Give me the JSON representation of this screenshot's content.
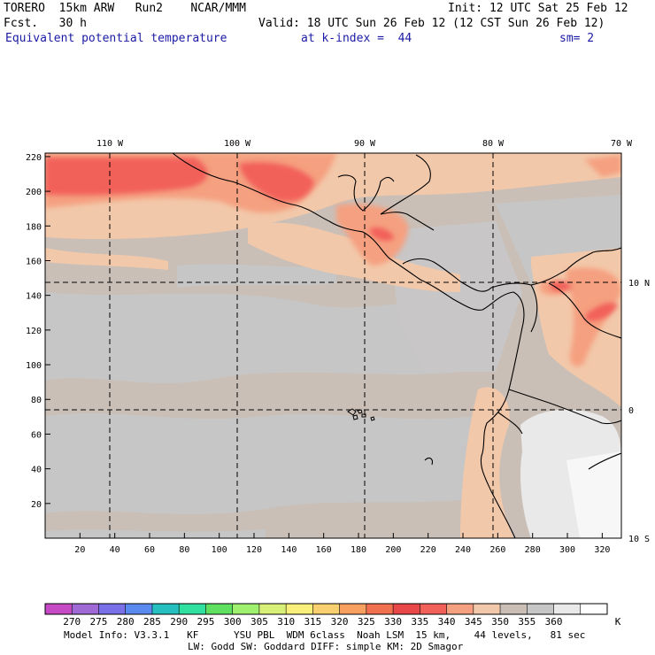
{
  "header": {
    "model": "TORERO  15km ARW   Run2    NCAR/MMM",
    "init": "Init: 12 UTC Sat 25 Feb 12",
    "fcst": "Fcst.   30 h",
    "valid": "Valid: 18 UTC Sun 26 Feb 12 (12 CST Sun 26 Feb 12)",
    "field": "Equivalent potential temperature",
    "level": "at k-index =  44",
    "smooth": "sm= 2"
  },
  "map": {
    "top_lon_labels": [
      "110 W",
      "100 W",
      "90 W",
      "80 W",
      "70 W"
    ],
    "right_lat_labels": [
      "10 N",
      "0",
      "10 S"
    ],
    "x_ticks": [
      "20",
      "40",
      "60",
      "80",
      "100",
      "120",
      "140",
      "160",
      "180",
      "200",
      "220",
      "240",
      "260",
      "280",
      "300",
      "320"
    ],
    "y_ticks": [
      "220",
      "200",
      "180",
      "160",
      "140",
      "120",
      "100",
      "80",
      "60",
      "40",
      "20"
    ],
    "colors": {
      "ocean_main": "#cabfb7",
      "grey_band": "#c6c6c6",
      "light": "#e9e9e9",
      "warm_light": "#f2c8aa",
      "warm_mid": "#f5a080",
      "warm_hot": "#f2605a"
    }
  },
  "colorbar": {
    "labels": [
      "270",
      "275",
      "280",
      "285",
      "290",
      "295",
      "300",
      "305",
      "310",
      "315",
      "320",
      "325",
      "330",
      "335",
      "340",
      "345",
      "350",
      "355",
      "360"
    ],
    "unit": "K",
    "colors": [
      "#c64ac6",
      "#a06ad6",
      "#7a70e8",
      "#5a8af0",
      "#26c0c0",
      "#30e0a0",
      "#60e060",
      "#a0f070",
      "#d8f078",
      "#f8f07a",
      "#f8d070",
      "#f8a060",
      "#f07050",
      "#e84848",
      "#f2605a",
      "#f5a080",
      "#f2c8aa",
      "#cabfb7",
      "#c6c6c6",
      "#e9e9e9",
      "#ffffff"
    ]
  },
  "footer": {
    "line1": "Model Info: V3.3.1   KF      YSU PBL  WDM 6class  Noah LSM  15 km,    44 levels,   81 sec",
    "line2": "LW: Godd SW: Goddard DIFF: simple KM: 2D Smagor"
  }
}
